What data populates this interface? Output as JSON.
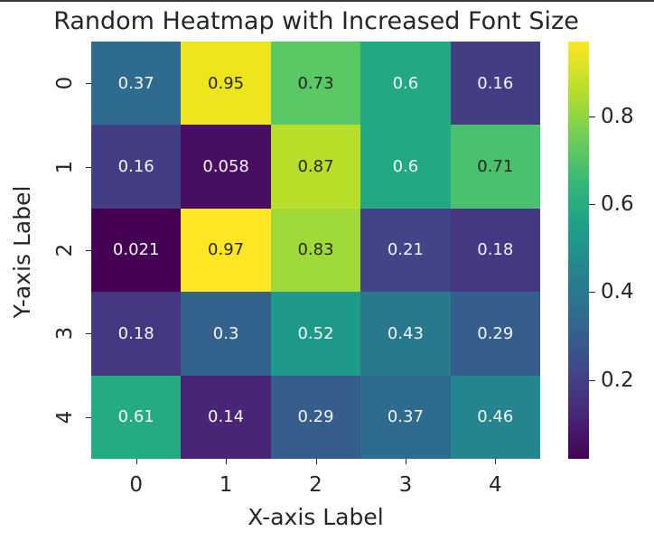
{
  "chart_data": {
    "type": "heatmap",
    "title": "Random Heatmap with Increased Font Size",
    "xlabel": "X-axis Label",
    "ylabel": "Y-axis Label",
    "x_ticks": [
      "0",
      "1",
      "2",
      "3",
      "4"
    ],
    "y_ticks": [
      "0",
      "1",
      "2",
      "3",
      "4"
    ],
    "values": [
      [
        0.37,
        0.95,
        0.73,
        0.6,
        0.16
      ],
      [
        0.16,
        0.058,
        0.87,
        0.6,
        0.71
      ],
      [
        0.021,
        0.97,
        0.83,
        0.21,
        0.18
      ],
      [
        0.18,
        0.3,
        0.52,
        0.43,
        0.29
      ],
      [
        0.61,
        0.14,
        0.29,
        0.37,
        0.46
      ]
    ],
    "annotations": [
      [
        "0.37",
        "0.95",
        "0.73",
        "0.6",
        "0.16"
      ],
      [
        "0.16",
        "0.058",
        "0.87",
        "0.6",
        "0.71"
      ],
      [
        "0.021",
        "0.97",
        "0.83",
        "0.21",
        "0.18"
      ],
      [
        "0.18",
        "0.3",
        "0.52",
        "0.43",
        "0.29"
      ],
      [
        "0.61",
        "0.14",
        "0.29",
        "0.37",
        "0.46"
      ]
    ],
    "colormap": "viridis",
    "colorbar": {
      "ticks": [
        "0.2",
        "0.4",
        "0.6",
        "0.8"
      ],
      "range": [
        0.021,
        0.97
      ]
    }
  },
  "colors": {
    "cells": [
      [
        "#2f6b8e",
        "#efe51c",
        "#5ac864",
        "#22a884",
        "#433d84"
      ],
      [
        "#433d84",
        "#470e61",
        "#b8de29",
        "#22a884",
        "#4ac16d"
      ],
      [
        "#440154",
        "#fde725",
        "#a0da39",
        "#414487",
        "#453781"
      ],
      [
        "#453781",
        "#33628d",
        "#1f9a8a",
        "#29798e",
        "#355e8d"
      ],
      [
        "#25ab82",
        "#482576",
        "#355e8d",
        "#2f6b8e",
        "#25858e"
      ]
    ],
    "text_dark": "#262626",
    "text_light": "#f5f5f5"
  }
}
